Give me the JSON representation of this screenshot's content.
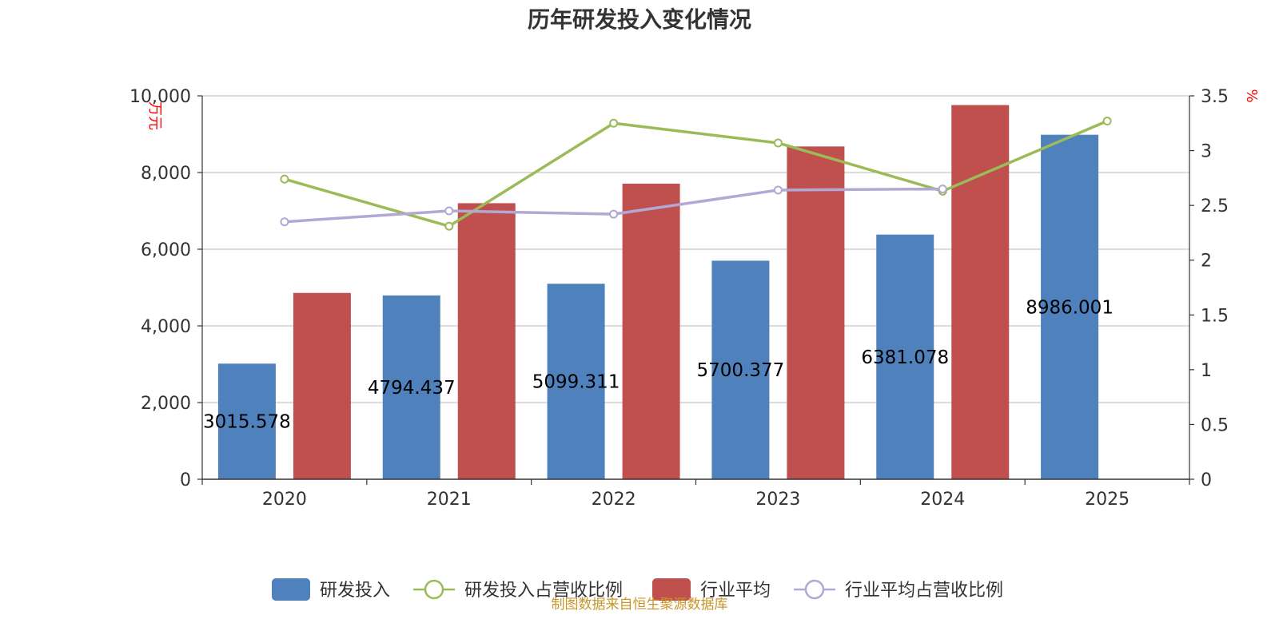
{
  "source_text": "制图数据来自恒生聚源数据库",
  "chart_data": {
    "type": "bar",
    "title": "历年研发投入变化情况",
    "categories": [
      "2020",
      "2021",
      "2022",
      "2023",
      "2024",
      "2025"
    ],
    "y_left": {
      "unit": "万元",
      "ylim": [
        0,
        10000
      ],
      "ticks": [
        "0",
        "2,000",
        "4,000",
        "6,000",
        "8,000",
        "10,000"
      ],
      "tick_values": [
        0,
        2000,
        4000,
        6000,
        8000,
        10000
      ]
    },
    "y_right": {
      "unit": "%",
      "ylim": [
        0,
        3.5
      ],
      "ticks": [
        "0",
        "0.5",
        "1",
        "1.5",
        "2",
        "2.5",
        "3",
        "3.5"
      ],
      "tick_values": [
        0,
        0.5,
        1,
        1.5,
        2,
        2.5,
        3,
        3.5
      ]
    },
    "series": [
      {
        "name": "研发投入",
        "kind": "bar",
        "axis": "left",
        "color": "#4f81bd",
        "values": [
          3015.578,
          4794.437,
          5099.311,
          5700.377,
          6381.078,
          8986.001
        ],
        "labels": [
          "3015.578",
          "4794.437",
          "5099.311",
          "5700.377",
          "6381.078",
          "8986.001"
        ]
      },
      {
        "name": "研发投入占营收比例",
        "kind": "line",
        "axis": "right",
        "color": "#9bbb59",
        "values": [
          2.74,
          2.31,
          3.25,
          3.07,
          2.63,
          3.27
        ]
      },
      {
        "name": "行业平均",
        "kind": "bar",
        "axis": "left",
        "color": "#c0504d",
        "values": [
          4860,
          7200,
          7710,
          8680,
          9760,
          null
        ]
      },
      {
        "name": "行业平均占营收比例",
        "kind": "line",
        "axis": "right",
        "color": "#b3a7d3",
        "values": [
          2.35,
          2.45,
          2.42,
          2.64,
          2.65,
          null
        ]
      }
    ],
    "grid": true,
    "legend_position": "bottom"
  }
}
